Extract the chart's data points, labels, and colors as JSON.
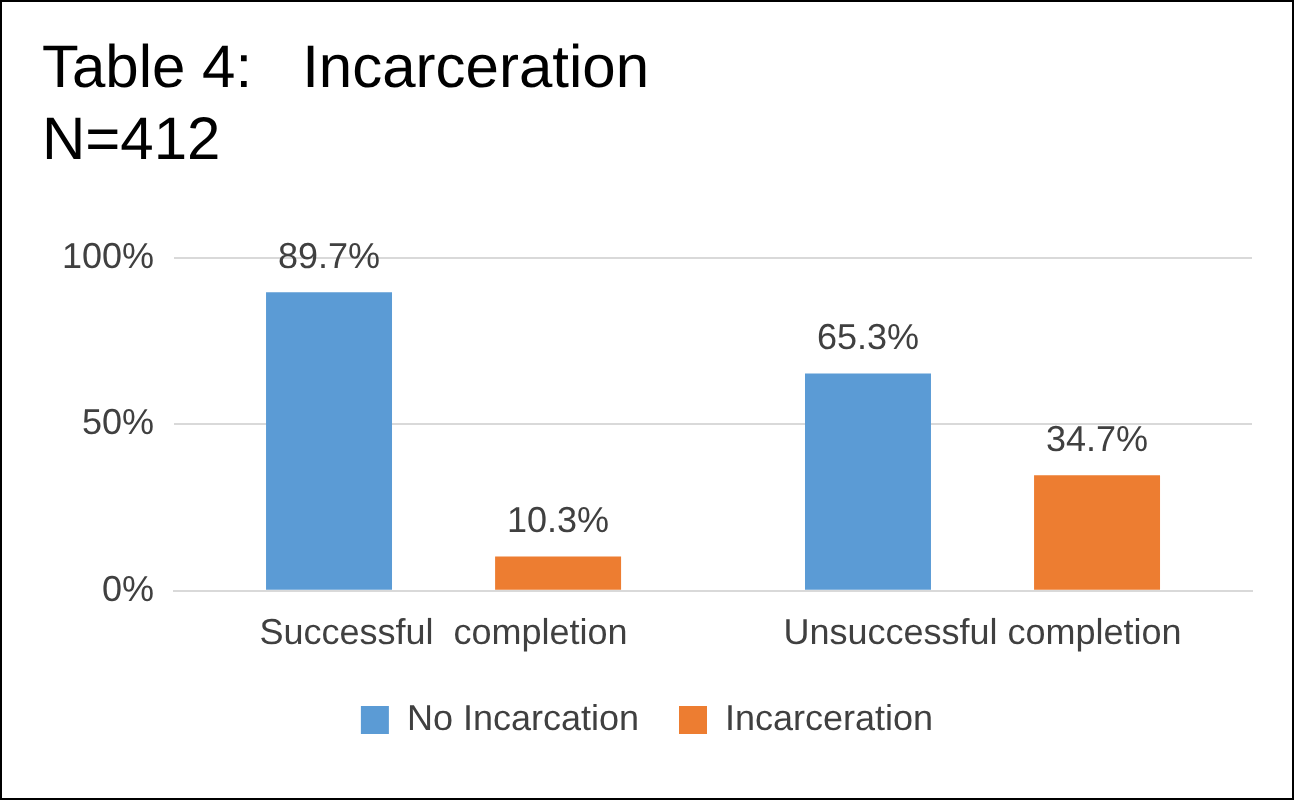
{
  "chart_data": {
    "type": "bar",
    "title": "Table 4:   Incarceration",
    "subtitle": "N=412",
    "categories": [
      "Successful  completion",
      "Unsuccessful completion"
    ],
    "series": [
      {
        "name": "No Incarcation",
        "color": "#5b9bd5",
        "values": [
          89.7,
          65.3
        ],
        "value_labels": [
          "89.7%",
          "65.3%"
        ]
      },
      {
        "name": "Incarceration",
        "color": "#ed7d31",
        "values": [
          10.3,
          34.7
        ],
        "value_labels": [
          "10.3%",
          "34.7%"
        ]
      }
    ],
    "ylim": [
      0,
      100
    ],
    "yticks": [
      {
        "value": 0,
        "label": "0%"
      },
      {
        "value": 50,
        "label": "50%"
      },
      {
        "value": 100,
        "label": "100%"
      }
    ],
    "grid": "y",
    "legend": "bottom"
  }
}
